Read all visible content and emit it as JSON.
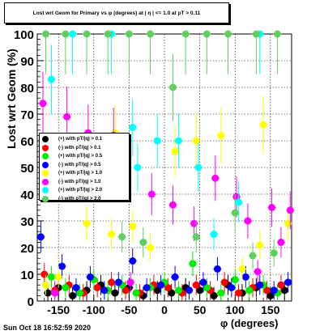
{
  "title": "Lost wrt Geom for Primary vs φ (degrees) at | η | <= 1.0 at pT > 0.11",
  "timestamp": "Sun Oct 18 16:52:59 2020",
  "chart_data": {
    "type": "scatter",
    "xlabel": "φ (degrees)",
    "ylabel": "Lost wrt Geom (%)",
    "xlim": [
      -180,
      180
    ],
    "ylim": [
      0,
      100
    ],
    "xticks": [
      -150,
      -100,
      -50,
      0,
      50,
      100,
      150
    ],
    "yticks": [
      0,
      10,
      20,
      30,
      40,
      50,
      60,
      70,
      80,
      90,
      100
    ],
    "grid": true,
    "legend_position": "left-middle",
    "series": [
      {
        "name": "(+) with pT/|q| > 0.1",
        "color": "#000000",
        "points": [
          [
            -165,
            3
          ],
          [
            -150,
            5
          ],
          [
            -130,
            2
          ],
          [
            -110,
            4
          ],
          [
            -90,
            6
          ],
          [
            -70,
            3
          ],
          [
            -50,
            5
          ],
          [
            -30,
            2
          ],
          [
            -10,
            4
          ],
          [
            10,
            3
          ],
          [
            30,
            5
          ],
          [
            50,
            4
          ],
          [
            70,
            2
          ],
          [
            90,
            6
          ],
          [
            110,
            3
          ],
          [
            130,
            5
          ],
          [
            150,
            2
          ],
          [
            170,
            4
          ]
        ]
      },
      {
        "name": "(-) with pT/|q| > 0.1",
        "color": "#ff0000",
        "points": [
          [
            -170,
            10
          ],
          [
            -155,
            4
          ],
          [
            -135,
            6
          ],
          [
            -115,
            3
          ],
          [
            -95,
            5
          ],
          [
            -75,
            7
          ],
          [
            -55,
            4
          ],
          [
            -35,
            3
          ],
          [
            -15,
            6
          ],
          [
            5,
            5
          ],
          [
            25,
            3
          ],
          [
            45,
            6
          ],
          [
            65,
            4
          ],
          [
            85,
            7
          ],
          [
            105,
            3
          ],
          [
            125,
            5
          ],
          [
            145,
            4
          ],
          [
            165,
            6
          ]
        ]
      },
      {
        "name": "(+) with pT/|q| > 0.5",
        "color": "#00ee00",
        "points": [
          [
            -160,
            9
          ],
          [
            -140,
            5
          ],
          [
            -120,
            3
          ],
          [
            -100,
            8
          ],
          [
            -80,
            4
          ],
          [
            -60,
            6
          ],
          [
            -40,
            3
          ],
          [
            -20,
            5
          ],
          [
            0,
            7
          ],
          [
            20,
            4
          ],
          [
            40,
            14
          ],
          [
            60,
            5
          ],
          [
            80,
            3
          ],
          [
            100,
            8
          ],
          [
            120,
            4
          ],
          [
            140,
            6
          ],
          [
            160,
            3
          ]
        ]
      },
      {
        "name": "(-) with pT/|q| > 0.5",
        "color": "#0000ff",
        "points": [
          [
            -175,
            24
          ],
          [
            -145,
            13
          ],
          [
            -125,
            5
          ],
          [
            -105,
            9
          ],
          [
            -85,
            4
          ],
          [
            -65,
            7
          ],
          [
            -45,
            15
          ],
          [
            -25,
            5
          ],
          [
            -5,
            6
          ],
          [
            15,
            9
          ],
          [
            35,
            4
          ],
          [
            55,
            7
          ],
          [
            75,
            12
          ],
          [
            95,
            5
          ],
          [
            115,
            9
          ],
          [
            135,
            6
          ],
          [
            155,
            4
          ],
          [
            175,
            7
          ]
        ]
      },
      {
        "name": "(+) with pT/|q| > 1.0",
        "color": "#ffff00",
        "points": [
          [
            -168,
            6
          ],
          [
            -150,
            9
          ],
          [
            -110,
            29
          ],
          [
            -75,
            25
          ],
          [
            -70,
            63
          ],
          [
            -45,
            28
          ],
          [
            -20,
            20
          ],
          [
            15,
            56
          ],
          [
            45,
            60
          ],
          [
            80,
            62
          ],
          [
            110,
            12
          ],
          [
            135,
            21
          ],
          [
            140,
            66
          ],
          [
            175,
            29
          ]
        ]
      },
      {
        "name": "(-) with pT/|q| > 1.0",
        "color": "#ff00ff",
        "points": [
          [
            -172,
            74
          ],
          [
            -155,
            3
          ],
          [
            -138,
            69
          ],
          [
            -108,
            63
          ],
          [
            -72,
            62
          ],
          [
            -48,
            7
          ],
          [
            -18,
            40
          ],
          [
            12,
            36
          ],
          [
            42,
            29
          ],
          [
            72,
            46
          ],
          [
            102,
            39
          ],
          [
            118,
            30
          ],
          [
            132,
            11
          ],
          [
            152,
            35
          ],
          [
            165,
            22
          ],
          [
            178,
            34
          ]
        ]
      },
      {
        "name": "(+) with pT/|q| > 2.0",
        "color": "#00ffff",
        "points": [
          [
            -160,
            83
          ],
          [
            -130,
            100
          ],
          [
            -75,
            100
          ],
          [
            -38,
            50
          ],
          [
            -45,
            65
          ],
          [
            -10,
            60
          ],
          [
            20,
            60
          ],
          [
            48,
            50
          ],
          [
            70,
            25
          ],
          [
            105,
            37
          ],
          [
            135,
            100
          ]
        ]
      },
      {
        "name": "(-) with pT/|q| > 2.0",
        "color": "#5fcf5f",
        "points": [
          [
            -168,
            100
          ],
          [
            -140,
            100
          ],
          [
            -110,
            100
          ],
          [
            -80,
            100
          ],
          [
            -50,
            100
          ],
          [
            -20,
            100
          ],
          [
            12,
            80
          ],
          [
            30,
            100
          ],
          [
            45,
            24
          ],
          [
            60,
            100
          ],
          [
            90,
            100
          ],
          [
            125,
            17
          ],
          [
            130,
            100
          ],
          [
            160,
            100
          ],
          [
            -60,
            24
          ],
          [
            -30,
            22
          ],
          [
            100,
            33
          ],
          [
            155,
            18
          ]
        ]
      }
    ]
  }
}
